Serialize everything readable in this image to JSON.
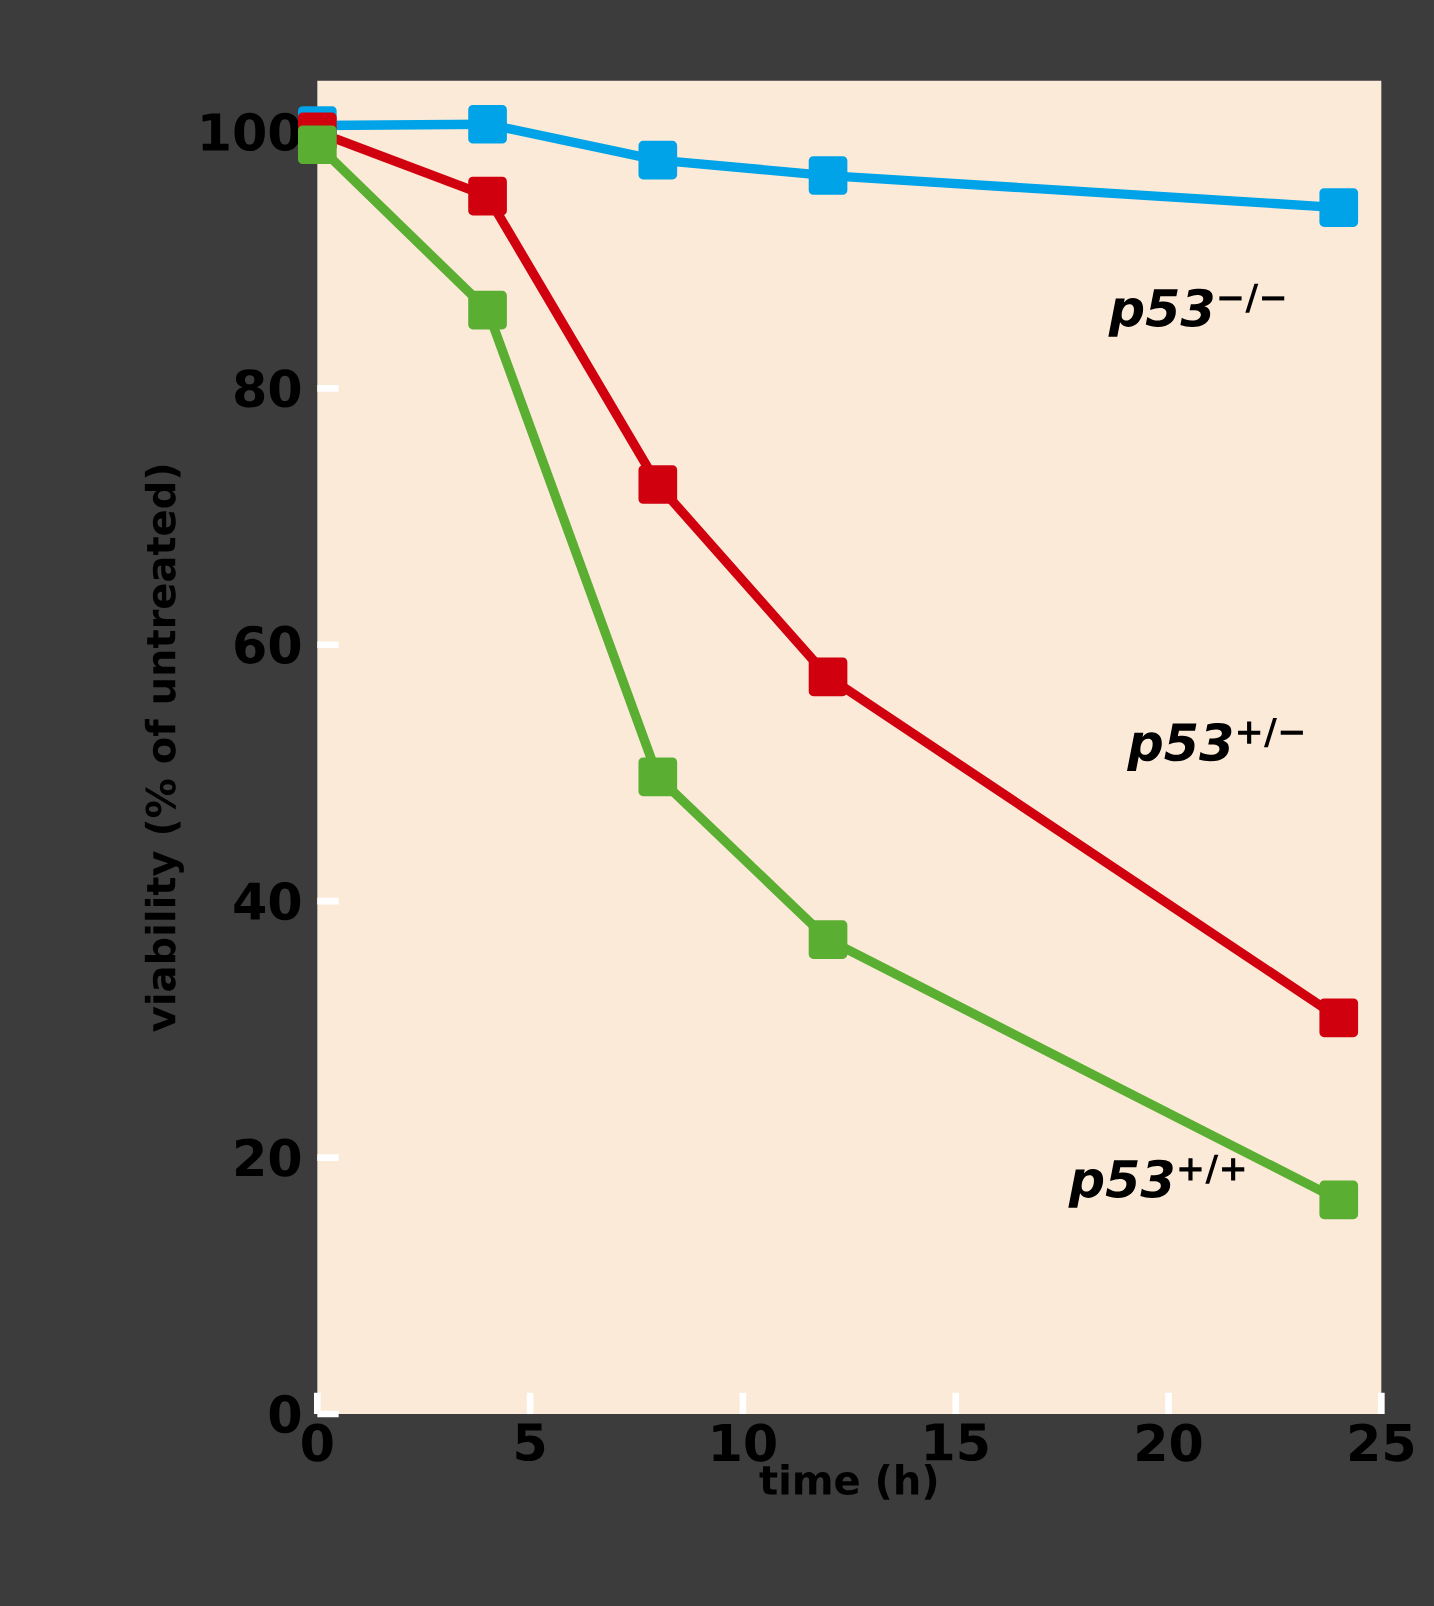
{
  "chart_data": {
    "type": "line",
    "xlabel": "time (h)",
    "ylabel": "viability (% of untreated)",
    "x": [
      0,
      4,
      8,
      12,
      24
    ],
    "series": [
      {
        "name": "*p53*$^{−/−}$",
        "color": "#00a3e8",
        "values": [
          100.5,
          100.6,
          97.8,
          96.6,
          94.1
        ]
      },
      {
        "name": "*p53*$^{+/−}$",
        "color": "#d0000f",
        "values": [
          100,
          95,
          72.5,
          57.5,
          30.9
        ]
      },
      {
        "name": "*p53*$^{+/+}$",
        "color": "#5aae32",
        "values": [
          99,
          86.1,
          49.7,
          37,
          16.7
        ]
      }
    ],
    "xlim": [
      0,
      25
    ],
    "ylim": [
      0,
      104
    ],
    "xticks": [
      0,
      5,
      10,
      15,
      20,
      25
    ],
    "yticks": [
      0,
      20,
      40,
      60,
      80,
      100
    ],
    "marker": "square",
    "line_style": "solid"
  }
}
